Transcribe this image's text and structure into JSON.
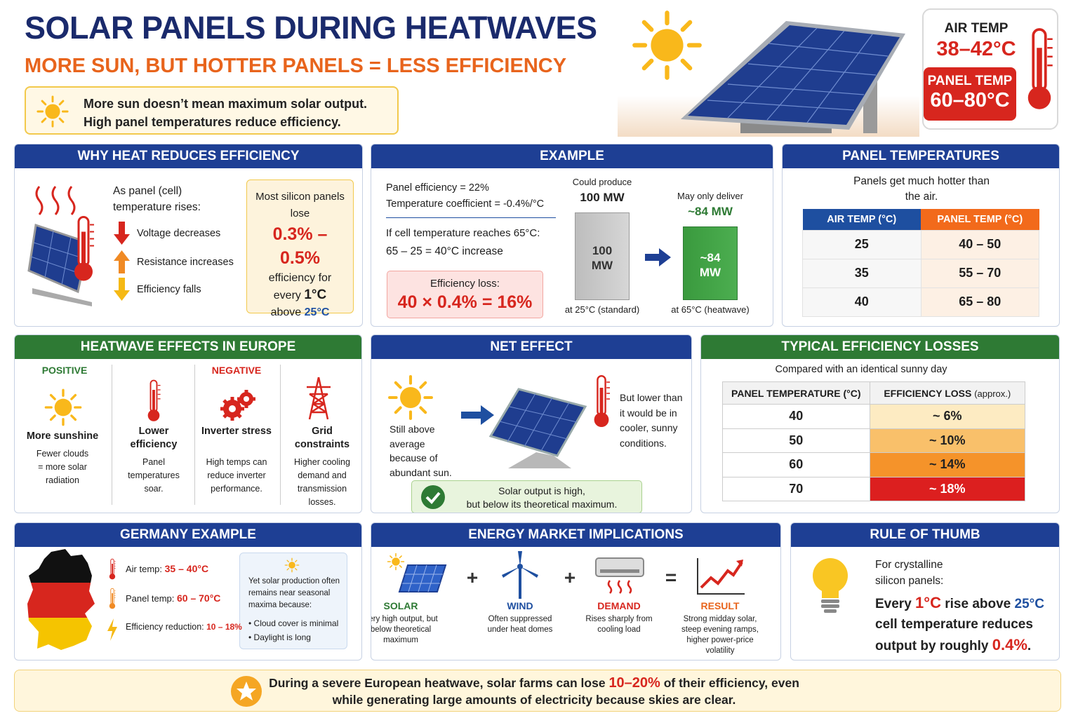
{
  "header": {
    "title": "SOLAR PANELS DURING HEATWAVES",
    "subtitle": "MORE SUN, BUT HOTTER PANELS = LESS EFFICIENCY",
    "callout": [
      "More sun doesn’t mean maximum solar output.",
      "High panel temperatures reduce efficiency."
    ]
  },
  "temp_card": {
    "air_label": "AIR TEMP",
    "air_value": "38–42°C",
    "panel_label": "PANEL TEMP",
    "panel_value": "60–80°C"
  },
  "why": {
    "title": "WHY HEAT REDUCES EFFICIENCY",
    "intro": "As panel (cell) temperature rises:",
    "effects": [
      "Voltage decreases",
      "Resistance increases",
      "Efficiency falls"
    ],
    "box": {
      "lead": "Most silicon panels lose",
      "range": "0.3% – 0.5%",
      "text1": "efficiency for",
      "every": "every",
      "unit": "1°C",
      "above": "above",
      "ref": "25°C"
    }
  },
  "example": {
    "title": "EXAMPLE",
    "lines": [
      "Panel efficiency = 22%",
      "Temperature coefficient = -0.4%/°C"
    ],
    "if": "If cell temperature reaches 65°C:",
    "calc": "65 – 25 = 40°C increase",
    "loss_label": "Efficiency loss:",
    "loss": "40 × 0.4% = 16%",
    "chart": {
      "values": [
        100,
        84
      ],
      "value_labels": [
        "100 MW",
        "~84 MW"
      ],
      "captions": [
        "Could produce",
        "May only deliver"
      ],
      "footers": [
        "at 25°C (standard)",
        "at 65°C (heatwave)"
      ]
    }
  },
  "panel_temps": {
    "title": "PANEL TEMPERATURES",
    "intro": "Panels get much hotter than the air.",
    "columns": [
      "AIR TEMP (°C)",
      "PANEL TEMP (°C)"
    ],
    "rows": [
      [
        25,
        "40 – 50"
      ],
      [
        35,
        "55 – 70"
      ],
      [
        40,
        "65 – 80"
      ]
    ]
  },
  "europe": {
    "title": "HEATWAVE EFFECTS IN EUROPE",
    "positive": "POSITIVE",
    "negative": "NEGATIVE",
    "items": [
      {
        "name": "More sunshine",
        "desc": "Fewer clouds = more solar radiation"
      },
      {
        "name": "Lower efficiency",
        "desc": "Panel temperatures soar."
      },
      {
        "name": "Inverter stress",
        "desc": "High temps can reduce inverter performance."
      },
      {
        "name": "Grid constraints",
        "desc": "Higher cooling demand and transmission losses."
      }
    ]
  },
  "net": {
    "title": "NET EFFECT",
    "left": "Still above average because of abundant sun.",
    "right": "But lower than it would be in cooler, sunny conditions.",
    "result": [
      "Solar output is high,",
      "but below its theoretical maximum."
    ]
  },
  "losses": {
    "title": "TYPICAL EFFICIENCY LOSSES",
    "subtitle": "Compared with an identical sunny day",
    "columns": [
      "PANEL TEMPERATURE (°C)",
      "EFFICIENCY LOSS"
    ],
    "column_note": "(approx.)",
    "rows": [
      [
        40,
        "~ 6%"
      ],
      [
        50,
        "~ 10%"
      ],
      [
        60,
        "~ 14%"
      ],
      [
        70,
        "~ 18%"
      ]
    ]
  },
  "germany": {
    "title": "GERMANY EXAMPLE",
    "facts": [
      {
        "label": "Air temp:",
        "value": "35 – 40°C"
      },
      {
        "label": "Panel temp:",
        "value": "60 – 70°C"
      },
      {
        "label": "Efficiency reduction:",
        "value": "10 – 18%"
      }
    ],
    "note": "Yet solar production often remains near seasonal maxima because:",
    "reasons": [
      "Cloud cover is minimal",
      "Daylight is long"
    ]
  },
  "market": {
    "title": "ENERGY MARKET IMPLICATIONS",
    "items": [
      {
        "name": "SOLAR",
        "desc": "Very high output, but below theoretical maximum"
      },
      {
        "name": "WIND",
        "desc": "Often suppressed under heat domes"
      },
      {
        "name": "DEMAND",
        "desc": "Rises sharply from cooling load"
      },
      {
        "name": "RESULT",
        "desc": "Strong midday solar, steep evening ramps, higher power-price volatility"
      }
    ],
    "operators": [
      "+",
      "+",
      "="
    ]
  },
  "rule": {
    "title": "RULE OF THUMB",
    "intro": "For crystalline silicon panels:",
    "parts": [
      "Every ",
      "1°C",
      " rise above ",
      "25°C",
      " cell temperature reduces output by roughly ",
      "0.4%",
      "."
    ]
  },
  "footer": {
    "parts": [
      "During a severe European heatwave, solar farms can lose ",
      "10–20%",
      " of their efficiency, even while generating large amounts of electricity because skies are clear."
    ]
  }
}
